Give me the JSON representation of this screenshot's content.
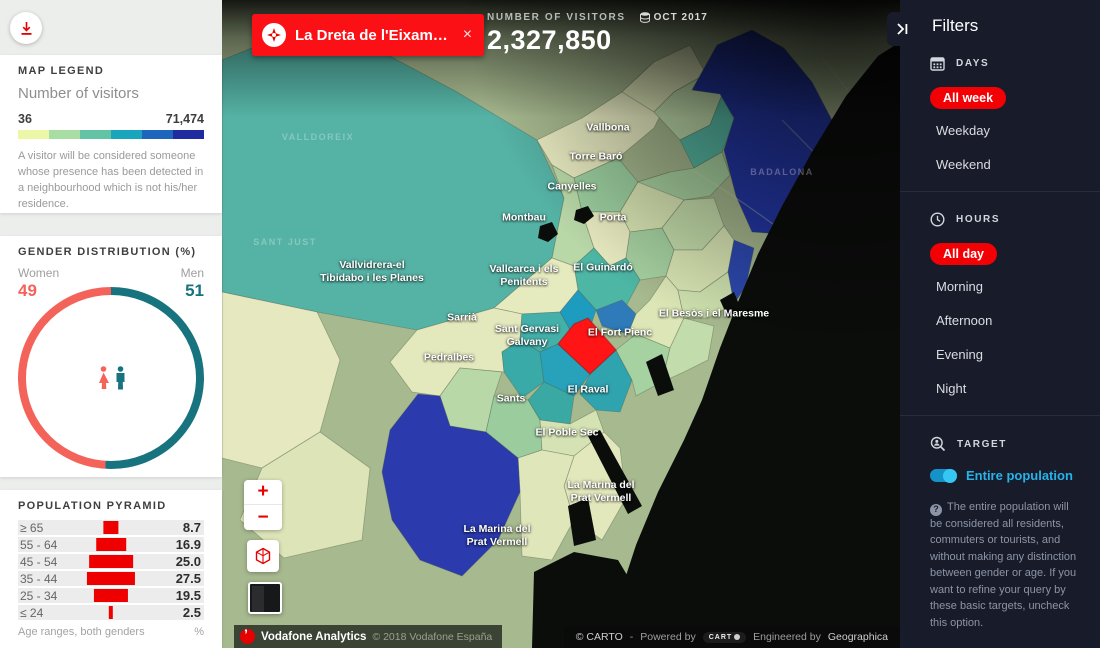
{
  "left_panel": {
    "map_legend": {
      "title": "MAP LEGEND",
      "subtitle": "Number of visitors",
      "min": "36",
      "max": "71,474",
      "colors": [
        "#edf7a8",
        "#a8dda4",
        "#62c3a5",
        "#19a6bc",
        "#1e66bd",
        "#1f2b9e"
      ],
      "description": "A visitor will be considered someone whose presence has been detected in a neighbourhood which is not his/her residence."
    },
    "gender": {
      "title": "GENDER DISTRIBUTION (%)",
      "women_label": "Women",
      "women_value": "49",
      "women_pct": 49,
      "women_color": "#f4635a",
      "men_label": "Men",
      "men_value": "51",
      "men_pct": 51,
      "men_color": "#17737e"
    },
    "population_pyramid": {
      "title": "POPULATION PYRAMID",
      "bar_color": "#ee0000",
      "rows": [
        {
          "label": "≥ 65",
          "value": 8.7,
          "display": "8.7"
        },
        {
          "label": "55 - 64",
          "value": 16.9,
          "display": "16.9"
        },
        {
          "label": "45 - 54",
          "value": 25.0,
          "display": "25.0"
        },
        {
          "label": "35 - 44",
          "value": 27.5,
          "display": "27.5"
        },
        {
          "label": "25 - 34",
          "value": 19.5,
          "display": "19.5"
        },
        {
          "label": "≤ 24",
          "value": 2.5,
          "display": "2.5"
        }
      ],
      "footer_left": "Age ranges, both genders",
      "footer_right": "%"
    }
  },
  "map": {
    "chip": {
      "label": "La Dreta de l'Eixam…",
      "close": "×"
    },
    "visitors": {
      "label": "NUMBER OF VISITORS",
      "period": "OCT 2017",
      "value": "2,327,850"
    },
    "controls": {
      "zoom_in": "+",
      "zoom_out": "−"
    },
    "labels": [
      {
        "text": "Vallbona"
      },
      {
        "text": "Torre Baró"
      },
      {
        "text": "Canyelles"
      },
      {
        "text": "Montbau"
      },
      {
        "text": "Porta"
      },
      {
        "text": "Vallcarca i els\nPenitents"
      },
      {
        "text": "El Guinardó"
      },
      {
        "text": "Vallvidrera-el\nTibidabo i les Planes"
      },
      {
        "text": "Sarrià"
      },
      {
        "text": "Sant Gervasi\nGalvany"
      },
      {
        "text": "El Fort Pienc"
      },
      {
        "text": "El Besòs i el Maresme"
      },
      {
        "text": "Pedralbes"
      },
      {
        "text": "El Raval"
      },
      {
        "text": "Sants"
      },
      {
        "text": "El Poble Sec"
      },
      {
        "text": "La Marina del\nPrat Vermell"
      },
      {
        "text": "La Marina del\nPrat Vermell"
      }
    ],
    "faint_labels": [
      {
        "text": "VALLDOREIX"
      },
      {
        "text": "BADALONA"
      },
      {
        "text": "SANT JUST"
      }
    ],
    "attribution_left": {
      "brand": "Vodafone Analytics",
      "copyright": "© 2018 Vodafone España"
    },
    "attribution_right": {
      "carto": "© CARTO",
      "dash": "-",
      "powered": "Powered by",
      "carto_logo": "CART",
      "engineered": "Engineered by",
      "company": "Geographica"
    }
  },
  "filters": {
    "title": "Filters",
    "days": {
      "label": "DAYS",
      "selected": "All week",
      "option_2": "Weekday",
      "option_3": "Weekend"
    },
    "hours": {
      "label": "HOURS",
      "selected": "All day",
      "option_2": "Morning",
      "option_3": "Afternoon",
      "option_4": "Evening",
      "option_5": "Night"
    },
    "target": {
      "label": "TARGET",
      "toggle_label": "Entire population",
      "toggle_on": true,
      "help": "The entire population will be considered all residents, commuters or tourists, and without making any distinction between gender or age. If you want to refine your query by these basic targets, uncheck this option."
    }
  }
}
